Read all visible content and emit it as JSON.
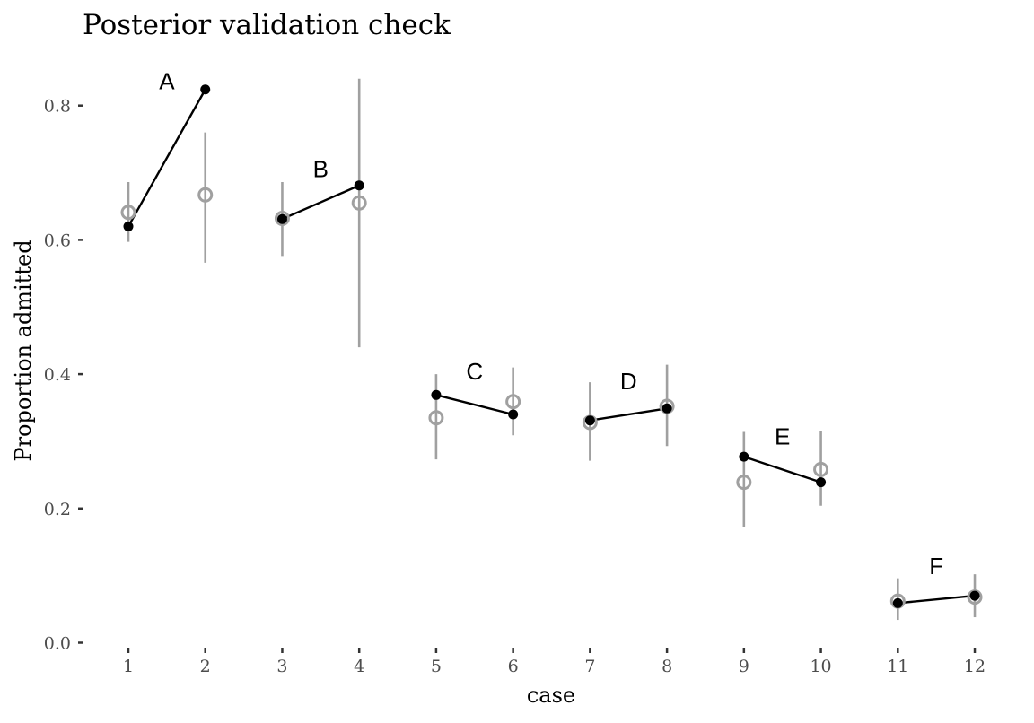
{
  "chart_data": {
    "type": "scatter",
    "title": "Posterior validation check",
    "xlabel": "case",
    "ylabel": "Proportion admitted",
    "x_ticks": [
      "1",
      "2",
      "3",
      "4",
      "5",
      "6",
      "7",
      "8",
      "9",
      "10",
      "11",
      "12"
    ],
    "y_ticks": [
      "0.0",
      "0.2",
      "0.4",
      "0.6",
      "0.8"
    ],
    "ylim": [
      0,
      0.85
    ],
    "xlim": [
      0.5,
      12.5
    ],
    "grid": false,
    "series": [
      {
        "role": "observed",
        "marker": "filled-circle",
        "color": "#000000",
        "x": [
          1,
          2,
          3,
          4,
          5,
          6,
          7,
          8,
          9,
          10,
          11,
          12
        ],
        "values": [
          0.62,
          0.824,
          0.631,
          0.681,
          0.369,
          0.34,
          0.331,
          0.349,
          0.277,
          0.239,
          0.059,
          0.07
        ]
      },
      {
        "role": "predicted",
        "marker": "open-circle",
        "color": "#a0a0a0",
        "x": [
          1,
          2,
          3,
          4,
          5,
          6,
          7,
          8,
          9,
          10,
          11,
          12
        ],
        "values": [
          0.641,
          0.667,
          0.632,
          0.655,
          0.335,
          0.359,
          0.328,
          0.352,
          0.239,
          0.258,
          0.062,
          0.068
        ],
        "interval_low": [
          0.597,
          0.566,
          0.576,
          0.44,
          0.273,
          0.309,
          0.271,
          0.293,
          0.173,
          0.204,
          0.034,
          0.038
        ],
        "interval_high": [
          0.686,
          0.76,
          0.686,
          0.84,
          0.4,
          0.41,
          0.388,
          0.414,
          0.314,
          0.316,
          0.096,
          0.102
        ]
      }
    ],
    "groups": [
      {
        "label": "A",
        "x": [
          1,
          2
        ]
      },
      {
        "label": "B",
        "x": [
          3,
          4
        ]
      },
      {
        "label": "C",
        "x": [
          5,
          6
        ]
      },
      {
        "label": "D",
        "x": [
          7,
          8
        ]
      },
      {
        "label": "E",
        "x": [
          9,
          10
        ]
      },
      {
        "label": "F",
        "x": [
          11,
          12
        ]
      }
    ]
  }
}
